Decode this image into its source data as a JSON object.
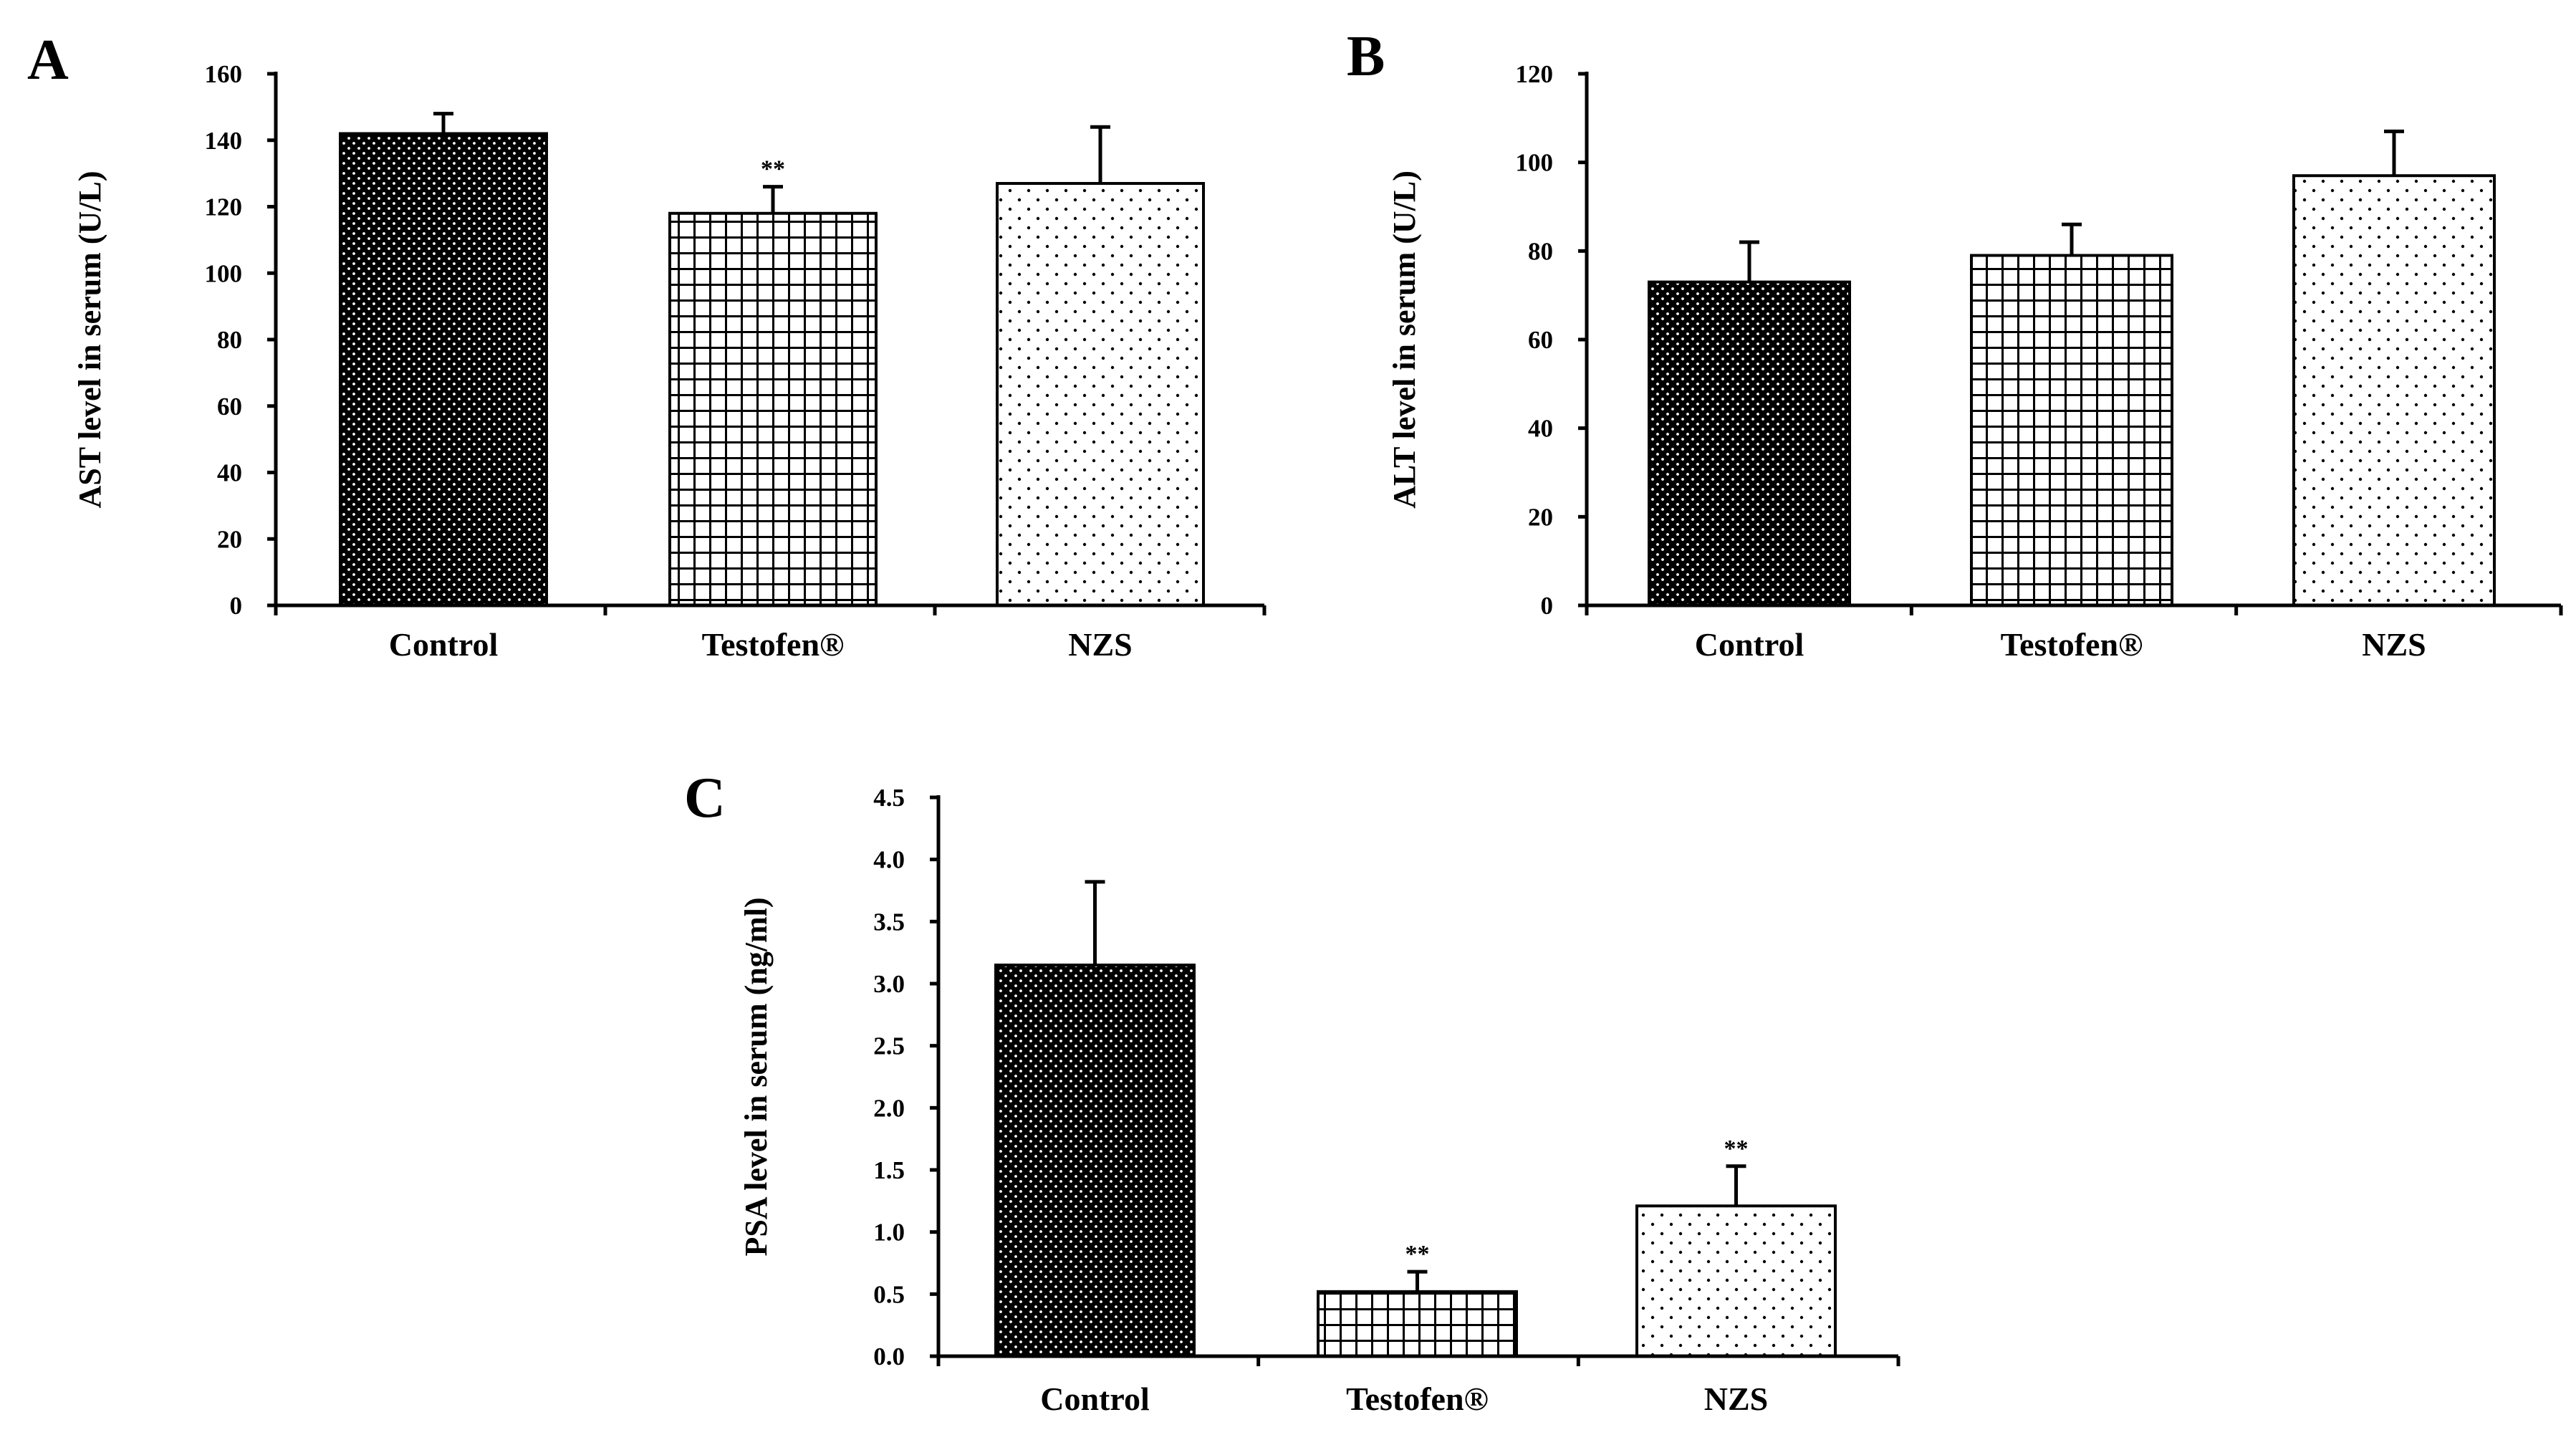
{
  "colors": {
    "ink": "#000000",
    "paper": "#ffffff"
  },
  "chart_data": [
    {
      "panel": "A",
      "type": "bar",
      "title": "",
      "xlabel": "",
      "ylabel": "AST level in serum (U/L)",
      "categories": [
        "Control",
        "Testofen®",
        "NZS"
      ],
      "values": [
        142,
        118,
        127
      ],
      "errors": [
        6,
        8,
        17
      ],
      "significance": [
        "",
        "**",
        ""
      ],
      "patterns": [
        "dense-dots",
        "grid",
        "sparse-dots"
      ],
      "ylim": [
        0,
        160
      ],
      "yticks": [
        0,
        20,
        40,
        60,
        80,
        100,
        120,
        140,
        160
      ],
      "ytick_labels": [
        "0",
        "20",
        "40",
        "60",
        "80",
        "100",
        "120",
        "140",
        "160"
      ],
      "grid": false
    },
    {
      "panel": "B",
      "type": "bar",
      "title": "",
      "xlabel": "",
      "ylabel": "ALT level in serum (U/L)",
      "categories": [
        "Control",
        "Testofen®",
        "NZS"
      ],
      "values": [
        73,
        79,
        97
      ],
      "errors": [
        9,
        7,
        10
      ],
      "significance": [
        "",
        "",
        ""
      ],
      "patterns": [
        "dense-dots",
        "grid",
        "sparse-dots"
      ],
      "ylim": [
        0,
        120
      ],
      "yticks": [
        0,
        20,
        40,
        60,
        80,
        100,
        120
      ],
      "ytick_labels": [
        "0",
        "20",
        "40",
        "60",
        "80",
        "100",
        "120"
      ],
      "grid": false
    },
    {
      "panel": "C",
      "type": "bar",
      "title": "",
      "xlabel": "",
      "ylabel": "PSA level in serum (ng/ml)",
      "categories": [
        "Control",
        "Testofen®",
        "NZS"
      ],
      "values": [
        3.15,
        0.52,
        1.21
      ],
      "errors": [
        0.67,
        0.16,
        0.32
      ],
      "significance": [
        "",
        "**",
        "**"
      ],
      "patterns": [
        "dense-dots",
        "grid",
        "sparse-dots"
      ],
      "ylim": [
        0,
        4.5
      ],
      "yticks": [
        0,
        0.5,
        1.0,
        1.5,
        2.0,
        2.5,
        3.0,
        3.5,
        4.0,
        4.5
      ],
      "ytick_labels": [
        "0.0",
        "0.5",
        "1.0",
        "1.5",
        "2.0",
        "2.5",
        "3.0",
        "3.5",
        "4.0",
        "4.5"
      ],
      "grid": false
    }
  ]
}
